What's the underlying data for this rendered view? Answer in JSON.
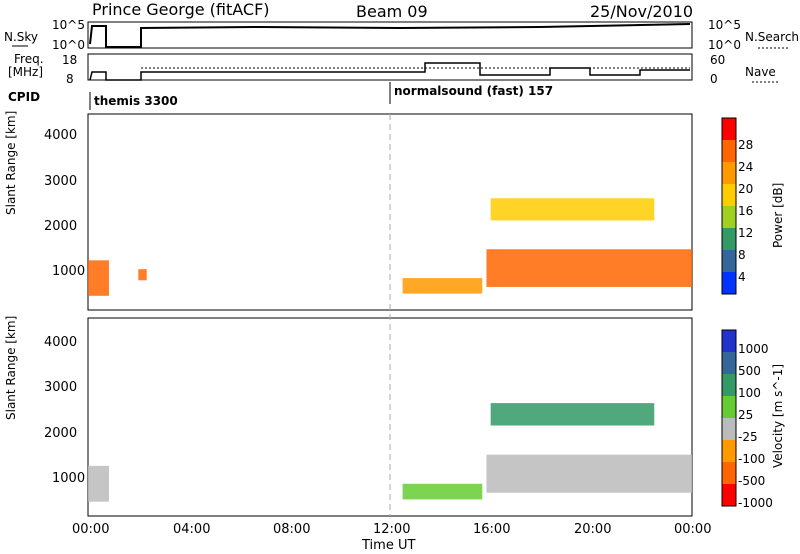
{
  "header": {
    "station": "Prince George (fitACF)",
    "beam": "Beam 09",
    "date": "25/Nov/2010"
  },
  "summary": {
    "left_top_label": "N.Sky",
    "left_top_ticks": [
      "10^5",
      "10^0"
    ],
    "right_top_label": "N.Search",
    "right_top_ticks": [
      "10^5",
      "10^0"
    ],
    "left_mid_label_1": "Freq.",
    "left_mid_label_2": "[MHz]",
    "left_mid_ticks": [
      "18",
      "8"
    ],
    "right_mid_label": "Nave",
    "right_mid_ticks": [
      "60",
      "0"
    ],
    "cpid_label": "CPID",
    "cpid_1": "themis 3300",
    "cpid_2": "normalsound (fast) 157"
  },
  "chart_data": [
    {
      "type": "heatmap",
      "title": "",
      "ylabel": "Slant Range [km]",
      "xlabel": "",
      "ylim": [
        180,
        4600
      ],
      "yticks": [
        "1000",
        "2000",
        "3000",
        "4000"
      ],
      "colorbar_label": "Power [dB]",
      "colorbar_ticks": [
        "28",
        "24",
        "20",
        "16",
        "12",
        "8",
        "4"
      ],
      "colorbar_colors": [
        "#ff0000",
        "#ff6600",
        "#ff9900",
        "#ffcc00",
        "#a0d020",
        "#339966",
        "#336699",
        "#0033ff"
      ],
      "features": [
        {
          "start": "00:00",
          "end": "00:50",
          "range_km": [
            500,
            1300
          ],
          "level_db": 24
        },
        {
          "start": "02:00",
          "end": "02:20",
          "range_km": [
            850,
            1100
          ],
          "level_db": 26
        },
        {
          "start": "12:30",
          "end": "15:40",
          "range_km": [
            550,
            900
          ],
          "level_db": 22
        },
        {
          "start": "15:50",
          "end": "24:00",
          "range_km": [
            700,
            1550
          ],
          "level_db": 26
        },
        {
          "start": "16:00",
          "end": "22:30",
          "range_km": [
            2200,
            2700
          ],
          "level_db": 16
        }
      ]
    },
    {
      "type": "heatmap",
      "title": "",
      "ylabel": "Slant Range [km]",
      "xlabel": "Time UT",
      "ylim": [
        180,
        4600
      ],
      "yticks": [
        "1000",
        "2000",
        "3000",
        "4000"
      ],
      "xticks": [
        "00:00",
        "04:00",
        "08:00",
        "12:00",
        "16:00",
        "20:00",
        "00:00"
      ],
      "colorbar_label": "Velocity [m s^-1]",
      "colorbar_ticks": [
        "1000",
        "500",
        "100",
        "25",
        "-25",
        "-100",
        "-500",
        "-1000"
      ],
      "colorbar_colors": [
        "#2233cc",
        "#336699",
        "#339966",
        "#66cc33",
        "#bbbbbb",
        "#ff9900",
        "#ff6600",
        "#ff0000"
      ],
      "features": [
        {
          "start": "00:00",
          "end": "00:50",
          "range_km": [
            500,
            1300
          ],
          "velocity": 0
        },
        {
          "start": "12:30",
          "end": "15:40",
          "range_km": [
            550,
            900
          ],
          "velocity": 100
        },
        {
          "start": "15:50",
          "end": "24:00",
          "range_km": [
            700,
            1550
          ],
          "velocity": 0
        },
        {
          "start": "16:00",
          "end": "22:30",
          "range_km": [
            2200,
            2700
          ],
          "velocity": 200
        }
      ]
    }
  ]
}
